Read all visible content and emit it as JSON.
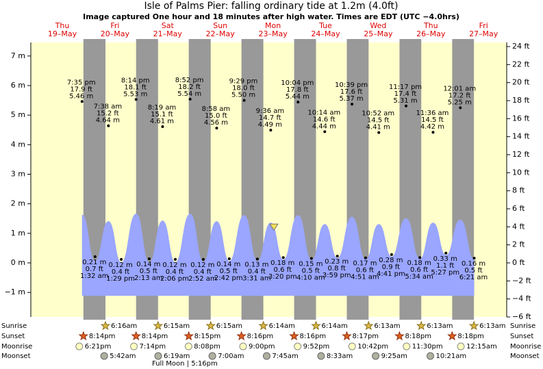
{
  "title": "Isle of Palms Pier: falling  ordinary tide at 1.2m (4.0ft)",
  "subtitle": "Image captured One hour and 18 minutes after high water. Times are EDT (UTC −4.0hrs)",
  "chart_data": {
    "type": "tide",
    "days": {
      "weekdays": [
        "Thu",
        "Fri",
        "Sat",
        "Sun",
        "Mon",
        "Tue",
        "Wed",
        "Thu",
        "Fri"
      ],
      "dates": [
        "19–May",
        "20–May",
        "21–May",
        "22–May",
        "23–May",
        "24–May",
        "25–May",
        "26–May",
        "27–May"
      ]
    },
    "ylim": [
      -1.83,
      7.32
    ],
    "yticks": [
      {
        "value": -1,
        "label": "−1 m"
      },
      {
        "value": 0,
        "label": "0 m"
      },
      {
        "value": 1,
        "label": "1 m"
      },
      {
        "value": 2,
        "label": "2 m"
      },
      {
        "value": 3,
        "label": "3 m"
      },
      {
        "value": 4,
        "label": "4 m"
      },
      {
        "value": 5,
        "label": "5 m"
      },
      {
        "value": 6,
        "label": "6 m"
      },
      {
        "value": 7,
        "label": "7 m"
      }
    ],
    "y2lim": [
      -6,
      24
    ],
    "y2ticks": [
      {
        "value": -6,
        "label": "−6 ft"
      },
      {
        "value": -4,
        "label": "−4 ft"
      },
      {
        "value": -2,
        "label": "−2 ft"
      },
      {
        "value": 0,
        "label": "0 ft"
      },
      {
        "value": 2,
        "label": "2 ft"
      },
      {
        "value": 4,
        "label": "4 ft"
      },
      {
        "value": 6,
        "label": "6 ft"
      },
      {
        "value": 8,
        "label": "8 ft"
      },
      {
        "value": 10,
        "label": "10 ft"
      },
      {
        "value": 12,
        "label": "12 ft"
      },
      {
        "value": 14,
        "label": "14 ft"
      },
      {
        "value": 16,
        "label": "16 ft"
      },
      {
        "value": 18,
        "label": "18 ft"
      },
      {
        "value": 20,
        "label": "20 ft"
      },
      {
        "value": 22,
        "label": "22 ft"
      },
      {
        "value": 24,
        "label": "24 ft"
      }
    ],
    "tides": {
      "day": [
        "19–May",
        "20–May",
        "20–May",
        "20–May",
        "20–May",
        "21–May",
        "21–May",
        "21–May",
        "21–May",
        "22–May",
        "22–May",
        "22–May",
        "22–May",
        "23–May",
        "23–May",
        "23–May",
        "23–May",
        "24–May",
        "24–May",
        "24–May",
        "24–May",
        "25–May",
        "25–May",
        "25–May",
        "25–May",
        "26–May",
        "26–May",
        "26–May",
        "27–May",
        "27–May"
      ],
      "time": [
        "7:35 pm",
        "1:32 am",
        "7:38 am",
        "1:29 pm",
        "8:14 pm",
        "2:13 am",
        "8:19 am",
        "2:06 pm",
        "8:52 pm",
        "2:52 am",
        "8:58 am",
        "2:42 pm",
        "9:29 pm",
        "3:31 am",
        "9:36 am",
        "3:20 pm",
        "10:04 pm",
        "4:10 am",
        "10:14 am",
        "3:59 pm",
        "10:39 pm",
        "4:51 am",
        "10:52 am",
        "4:41 pm",
        "11:17 pm",
        "5:34 am",
        "11:36 am",
        "5:27 pm",
        "12:01 am",
        "6:21 am"
      ],
      "values": [
        5.46,
        0.21,
        4.64,
        0.12,
        5.53,
        0.14,
        4.61,
        0.12,
        5.54,
        0.12,
        4.56,
        0.14,
        5.5,
        0.13,
        4.49,
        0.18,
        5.44,
        0.15,
        4.44,
        0.23,
        5.37,
        0.17,
        4.41,
        0.28,
        5.31,
        0.18,
        4.42,
        0.33,
        5.25,
        0.16
      ],
      "value_labels": [
        "5.46 m",
        "0.21 m",
        "4.64 m",
        "0.12 m",
        "5.53 m",
        "0.14 m",
        "4.61 m",
        "0.12 m",
        "5.54 m",
        "0.12 m",
        "4.56 m",
        "0.14 m",
        "5.50 m",
        "0.13 m",
        "4.49 m",
        "0.18 m",
        "5.44 m",
        "0.15 m",
        "4.44 m",
        "0.23 m",
        "5.37 m",
        "0.17 m",
        "4.41 m",
        "0.28 m",
        "5.31 m",
        "0.18 m",
        "4.42 m",
        "0.33 m",
        "5.25 m",
        "0.16 m"
      ],
      "ft": [
        "17.9 ft",
        "0.7 ft",
        "15.2 ft",
        "0.4 ft",
        "18.1 ft",
        "0.5 ft",
        "15.1 ft",
        "0.4 ft",
        "18.2 ft",
        "0.4 ft",
        "15.0 ft",
        "0.5 ft",
        "18.0 ft",
        "0.4 ft",
        "14.7 ft",
        "0.6 ft",
        "17.8 ft",
        "0.5 ft",
        "14.6 ft",
        "0.8 ft",
        "17.6 ft",
        "0.6 ft",
        "14.5 ft",
        "0.9 ft",
        "17.4 ft",
        "0.6 ft",
        "14.5 ft",
        "1.1 ft",
        "17.2 ft",
        "0.5 ft"
      ]
    },
    "curve": {
      "color": "#9aa6ff",
      "values": [
        1.62,
        0.05,
        1.4,
        0.0,
        1.65,
        0.0,
        1.42,
        0.0,
        1.65,
        0.02,
        1.4,
        0.05,
        1.6,
        0.05,
        1.35,
        0.1,
        1.6,
        0.08,
        1.3,
        0.15,
        1.55,
        0.1,
        1.3,
        0.2,
        1.5,
        0.12,
        1.35,
        0.25,
        1.45,
        0.1
      ]
    },
    "current_level": 1.2,
    "events": [
      {
        "name": "Sunrise",
        "day": [
          "20–May",
          "21–May",
          "22–May",
          "23–May",
          "24–May",
          "25–May",
          "26–May",
          "27–May"
        ],
        "time": [
          "6:16am",
          "6:15am",
          "6:15am",
          "6:14am",
          "6:14am",
          "6:13am",
          "6:13am",
          "6:13am"
        ]
      },
      {
        "name": "Sunset",
        "day": [
          "19–May",
          "20–May",
          "21–May",
          "22–May",
          "23–May",
          "24–May",
          "25–May",
          "26–May"
        ],
        "time": [
          "8:14pm",
          "8:14pm",
          "8:15pm",
          "8:16pm",
          "8:16pm",
          "8:17pm",
          "8:18pm",
          "8:18pm"
        ]
      },
      {
        "name": "Moonrise",
        "day": [
          "19–May",
          "20–May",
          "21–May",
          "22–May",
          "23–May",
          "24–May",
          "25–May",
          "27–May"
        ],
        "time": [
          "6:21pm",
          "7:14pm",
          "8:08pm",
          "9:00pm",
          "9:52pm",
          "10:42pm",
          "11:30pm",
          "12:15am"
        ]
      },
      {
        "name": "Moonset",
        "day": [
          "20–May",
          "21–May",
          "22–May",
          "23–May",
          "24–May",
          "25–May",
          "26–May"
        ],
        "time": [
          "5:42am",
          "6:19am",
          "7:00am",
          "7:45am",
          "8:33am",
          "9:25am",
          "10:21am"
        ]
      }
    ],
    "full_moon": "Full Moon | 5:16pm"
  }
}
